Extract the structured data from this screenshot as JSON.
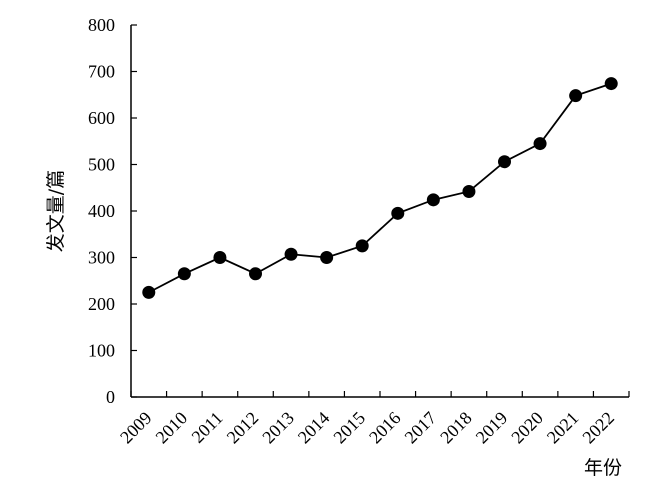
{
  "chart_data": {
    "type": "line",
    "ylabel": "发文量/篇",
    "xlabel": "年份",
    "ylim": [
      0,
      800
    ],
    "yticks": [
      "0",
      "100",
      "200",
      "300",
      "400",
      "500",
      "600",
      "700",
      "800"
    ],
    "x": [
      "2009",
      "2010",
      "2011",
      "2012",
      "2013",
      "2014",
      "2015",
      "2016",
      "2017",
      "2018",
      "2019",
      "2020",
      "2021",
      "2022"
    ],
    "series": [
      {
        "values": [
          225,
          265,
          300,
          265,
          307,
          300,
          325,
          395,
          424,
          442,
          506,
          545,
          648,
          674
        ],
        "color": "#000000"
      }
    ],
    "grid": false,
    "legend": "none"
  }
}
